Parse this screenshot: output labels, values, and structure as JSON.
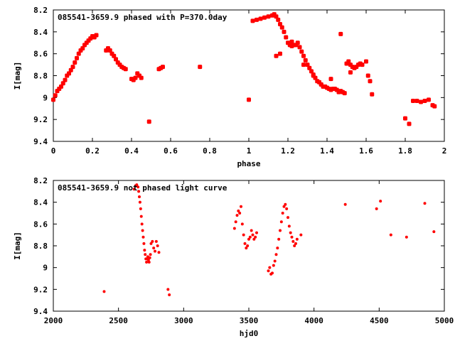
{
  "chart_data": [
    {
      "type": "scatter",
      "title": "085541-3659.9 phased with P=370.0day",
      "xlabel": "phase",
      "ylabel": "I[mag]",
      "xlim": [
        0,
        2
      ],
      "ylim": [
        9.4,
        8.2
      ],
      "y_inverted": true,
      "xticks": [
        "0",
        "0.2",
        "0.4",
        "0.6",
        "0.8",
        "1",
        "1.2",
        "1.4",
        "1.6",
        "1.8",
        "2"
      ],
      "yticks": [
        "8.2",
        "8.4",
        "8.6",
        "8.8",
        "9",
        "9.2",
        "9.4"
      ],
      "grid": false,
      "marker_color": "#ff0000",
      "series": [
        {
          "x": [
            0.0,
            0.01,
            0.02,
            0.03,
            0.04,
            0.05,
            0.06,
            0.07,
            0.08,
            0.09,
            0.1,
            0.11,
            0.12,
            0.13,
            0.14,
            0.15,
            0.16,
            0.17,
            0.18,
            0.19,
            0.2,
            0.21,
            0.22,
            0.27,
            0.28,
            0.29,
            0.3,
            0.31,
            0.32,
            0.33,
            0.34,
            0.35,
            0.36,
            0.37,
            0.4,
            0.41,
            0.42,
            0.43,
            0.44,
            0.45,
            0.49,
            0.54,
            0.55,
            0.56,
            0.75,
            1.0,
            1.02,
            1.04,
            1.06,
            1.08,
            1.1,
            1.12,
            1.13,
            1.14,
            1.15,
            1.16,
            1.17,
            1.18,
            1.19,
            1.2,
            1.21,
            1.22,
            1.23,
            1.24,
            1.25,
            1.26,
            1.27,
            1.28,
            1.29,
            1.3,
            1.31,
            1.32,
            1.33,
            1.34,
            1.35,
            1.36,
            1.37,
            1.38,
            1.39,
            1.4,
            1.41,
            1.42,
            1.43,
            1.44,
            1.45,
            1.46,
            1.47,
            1.48,
            1.49,
            1.5,
            1.51,
            1.52,
            1.53,
            1.54,
            1.55,
            1.56,
            1.57,
            1.58,
            1.6,
            1.61,
            1.62,
            1.63,
            1.8,
            1.82,
            1.84,
            1.86,
            1.88,
            1.9,
            1.92,
            1.94,
            1.95,
            1.14,
            1.16,
            1.22,
            1.28,
            1.33,
            1.37,
            1.42,
            1.47,
            1.52
          ],
          "y": [
            9.02,
            8.98,
            8.94,
            8.92,
            8.9,
            8.87,
            8.84,
            8.8,
            8.78,
            8.75,
            8.72,
            8.68,
            8.64,
            8.6,
            8.57,
            8.55,
            8.52,
            8.5,
            8.48,
            8.46,
            8.44,
            8.45,
            8.43,
            8.57,
            8.55,
            8.57,
            8.6,
            8.62,
            8.65,
            8.68,
            8.7,
            8.72,
            8.73,
            8.74,
            8.83,
            8.84,
            8.82,
            8.78,
            8.8,
            8.82,
            9.22,
            8.74,
            8.73,
            8.72,
            8.72,
            9.02,
            8.3,
            8.29,
            8.28,
            8.27,
            8.26,
            8.25,
            8.24,
            8.26,
            8.29,
            8.33,
            8.36,
            8.4,
            8.45,
            8.5,
            8.52,
            8.53,
            8.52,
            8.52,
            8.5,
            8.54,
            8.58,
            8.62,
            8.66,
            8.7,
            8.73,
            8.76,
            8.79,
            8.82,
            8.85,
            8.86,
            8.88,
            8.9,
            8.9,
            8.91,
            8.92,
            8.93,
            8.92,
            8.92,
            8.93,
            8.95,
            8.94,
            8.95,
            8.96,
            8.69,
            8.67,
            8.7,
            8.72,
            8.73,
            8.72,
            8.7,
            8.69,
            8.7,
            8.67,
            8.8,
            8.85,
            8.97,
            9.19,
            9.24,
            9.03,
            9.03,
            9.04,
            9.03,
            9.02,
            9.07,
            9.08,
            8.62,
            8.6,
            8.49,
            8.7,
            8.8,
            8.88,
            8.83,
            8.42,
            8.77
          ]
        }
      ]
    },
    {
      "type": "scatter",
      "title": "085541-3659.9 not phased light curve",
      "xlabel": "hjd0",
      "ylabel": "I[mag]",
      "xlim": [
        2000,
        5000
      ],
      "ylim": [
        9.4,
        8.2
      ],
      "y_inverted": true,
      "xticks": [
        "2000",
        "2500",
        "3000",
        "3500",
        "4000",
        "4500",
        "5000"
      ],
      "yticks": [
        "8.2",
        "8.4",
        "8.6",
        "8.8",
        "9",
        "9.2",
        "9.4"
      ],
      "grid": false,
      "marker_color": "#ff0000",
      "series": [
        {
          "x": [
            2390,
            2620,
            2630,
            2640,
            2650,
            2655,
            2660,
            2665,
            2670,
            2675,
            2680,
            2685,
            2690,
            2695,
            2700,
            2705,
            2710,
            2715,
            2720,
            2725,
            2730,
            2735,
            2740,
            2745,
            2750,
            2760,
            2770,
            2780,
            2790,
            2800,
            2810,
            2880,
            2890,
            3390,
            3400,
            3410,
            3420,
            3430,
            3440,
            3450,
            3460,
            3470,
            3480,
            3490,
            3500,
            3510,
            3520,
            3530,
            3540,
            3550,
            3560,
            3650,
            3660,
            3670,
            3680,
            3690,
            3700,
            3710,
            3720,
            3730,
            3740,
            3750,
            3760,
            3770,
            3780,
            3790,
            3800,
            3810,
            3820,
            3830,
            3840,
            3850,
            3860,
            3870,
            3900,
            4240,
            4480,
            4510,
            4590,
            4710,
            4850,
            4920
          ],
          "y": [
            9.22,
            8.28,
            8.25,
            8.24,
            8.26,
            8.3,
            8.35,
            8.4,
            8.46,
            8.53,
            8.6,
            8.66,
            8.72,
            8.78,
            8.84,
            8.88,
            8.92,
            8.95,
            8.92,
            8.9,
            8.93,
            8.95,
            8.91,
            8.88,
            8.78,
            8.76,
            8.82,
            8.85,
            8.76,
            8.8,
            8.86,
            9.2,
            9.25,
            8.64,
            8.58,
            8.52,
            8.48,
            8.5,
            8.44,
            8.6,
            8.7,
            8.78,
            8.82,
            8.8,
            8.74,
            8.72,
            8.66,
            8.7,
            8.74,
            8.72,
            8.68,
            9.03,
            9.0,
            9.06,
            9.05,
            8.98,
            8.94,
            8.88,
            8.82,
            8.74,
            8.66,
            8.58,
            8.5,
            8.44,
            8.42,
            8.46,
            8.54,
            8.62,
            8.68,
            8.72,
            8.76,
            8.8,
            8.78,
            8.74,
            8.7,
            8.42,
            8.46,
            8.39,
            8.7,
            8.72,
            8.41,
            8.67
          ]
        }
      ]
    }
  ]
}
